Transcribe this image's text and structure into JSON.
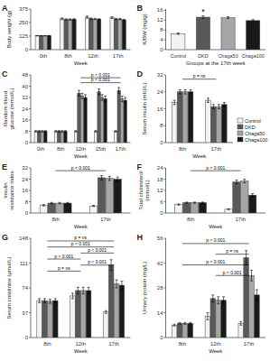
{
  "chart_data": [
    {
      "type": "bar",
      "title": "A",
      "x_label": "Week",
      "y_label": "Body weight (g)",
      "categories": [
        "0th",
        "8th",
        "12th",
        "17th"
      ],
      "series": [
        {
          "color": "#f2f2f2",
          "values": [
            128,
            285,
            300,
            295
          ],
          "errors": [
            2,
            8,
            10,
            8
          ]
        },
        {
          "color": "#595959",
          "values": [
            128,
            278,
            285,
            283
          ],
          "errors": [
            2,
            7,
            7,
            6
          ]
        },
        {
          "color": "#a6a6a6",
          "values": [
            128,
            278,
            283,
            283
          ],
          "errors": [
            2,
            6,
            6,
            6
          ]
        },
        {
          "color": "#1a1a1a",
          "values": [
            128,
            280,
            280,
            275
          ],
          "errors": [
            2,
            6,
            6,
            5
          ]
        }
      ],
      "ylim": [
        0,
        375
      ],
      "yticks": [
        0,
        125,
        250,
        375
      ]
    },
    {
      "type": "bar",
      "title": "B",
      "x_label": "Groups at the 17th week",
      "y_label": "K/BW (mg/g)",
      "categories": [
        "Control",
        "DKD",
        "Chaga50",
        "Chaga100"
      ],
      "values": [
        6.5,
        13.2,
        13.0,
        11.8
      ],
      "errors": [
        0.3,
        0.5,
        0.4,
        0.4
      ],
      "colors": [
        "#f2f2f2",
        "#595959",
        "#a6a6a6",
        "#1a1a1a"
      ],
      "ylim": [
        0,
        16.5
      ],
      "yticks": [
        0,
        4,
        8,
        12,
        16
      ],
      "annotations": [
        {
          "text": "*",
          "category": "DKD"
        }
      ]
    },
    {
      "type": "bar",
      "title": "C",
      "x_label": "Week",
      "y_label": "Random blood glucose (mmol/L)",
      "categories": [
        "0th",
        "8th",
        "12th",
        "15th",
        "17th"
      ],
      "series": [
        {
          "color": "#f2f2f2",
          "values": [
            8,
            8,
            8,
            8,
            8
          ],
          "errors": [
            0.5,
            0.5,
            0.5,
            0.5,
            0.5
          ]
        },
        {
          "color": "#595959",
          "values": [
            8,
            8,
            35,
            36,
            37
          ],
          "errors": [
            0.5,
            0.5,
            2,
            2,
            2
          ]
        },
        {
          "color": "#a6a6a6",
          "values": [
            8,
            8,
            33,
            32,
            31
          ],
          "errors": [
            0.5,
            0.5,
            2,
            2,
            2
          ]
        },
        {
          "color": "#1a1a1a",
          "values": [
            8,
            8,
            32,
            31,
            30
          ],
          "errors": [
            0.5,
            0.5,
            2,
            2,
            2
          ]
        }
      ],
      "ylim": [
        0,
        48
      ],
      "yticks": [
        0,
        8,
        16,
        24,
        32,
        40,
        48
      ],
      "annotations": [
        {
          "text": "p < 0.001",
          "from": "12th",
          "to": "17th",
          "y": 46.0
        },
        {
          "text": "p < 0.001",
          "from": "12th",
          "to": "17th",
          "y": 42.5
        }
      ]
    },
    {
      "type": "bar",
      "title": "D",
      "x_label": "Week",
      "y_label": "Serum insulin (mIU/L)",
      "categories": [
        "8th",
        "17th"
      ],
      "series": [
        {
          "name": "Control",
          "color": "#f2f2f2",
          "values": [
            19,
            20
          ],
          "errors": [
            1,
            1
          ]
        },
        {
          "name": "DKD",
          "color": "#595959",
          "values": [
            24,
            17
          ],
          "errors": [
            1,
            1
          ]
        },
        {
          "name": "Chaga50",
          "color": "#a6a6a6",
          "values": [
            24,
            17
          ],
          "errors": [
            1,
            1
          ]
        },
        {
          "name": "Chaga100",
          "color": "#1a1a1a",
          "values": [
            24,
            18
          ],
          "errors": [
            1,
            1
          ]
        }
      ],
      "ylim": [
        0,
        32
      ],
      "yticks": [
        0,
        8,
        16,
        24,
        32
      ],
      "legend": "lower right",
      "annotations": [
        {
          "text": "p = ns",
          "from": "8th",
          "to": "17th",
          "y": 30.0
        }
      ]
    },
    {
      "type": "bar",
      "title": "E",
      "x_label": "Week",
      "y_label": "Insulin resistance index",
      "categories": [
        "8th",
        "17th"
      ],
      "series": [
        {
          "color": "#f2f2f2",
          "values": [
            5.5,
            5.0
          ],
          "errors": [
            0.5,
            0.4
          ]
        },
        {
          "color": "#595959",
          "values": [
            7.0,
            25.0
          ],
          "errors": [
            0.5,
            1.5
          ]
        },
        {
          "color": "#a6a6a6",
          "values": [
            7.0,
            24.5
          ],
          "errors": [
            0.5,
            1.5
          ]
        },
        {
          "color": "#1a1a1a",
          "values": [
            7.0,
            24.0
          ],
          "errors": [
            0.5,
            1.5
          ]
        }
      ],
      "ylim": [
        0,
        32
      ],
      "yticks": [
        0,
        8,
        16,
        24,
        32
      ],
      "annotations": [
        {
          "text": "p < 0.001",
          "from": "8th",
          "to": "17th",
          "y": 30.0
        }
      ]
    },
    {
      "type": "bar",
      "title": "F",
      "x_label": "Week",
      "y_label": "Total cholesterol (mmol/L)",
      "categories": [
        "8th",
        "17th"
      ],
      "series": [
        {
          "color": "#f2f2f2",
          "values": [
            4.5,
            2.0
          ],
          "errors": [
            0.3,
            0.2
          ]
        },
        {
          "color": "#595959",
          "values": [
            5.5,
            16.5
          ],
          "errors": [
            0.3,
            1.0
          ]
        },
        {
          "color": "#a6a6a6",
          "values": [
            5.5,
            17.0
          ],
          "errors": [
            0.3,
            1.0
          ]
        },
        {
          "color": "#1a1a1a",
          "values": [
            5.5,
            9.5
          ],
          "errors": [
            0.3,
            0.8
          ]
        }
      ],
      "ylim": [
        0,
        24
      ],
      "yticks": [
        0,
        6,
        12,
        18,
        24
      ],
      "annotations": [
        {
          "text": "p < 0.001",
          "from": "8th",
          "to": "17th",
          "y": 22.5
        }
      ]
    },
    {
      "type": "bar",
      "title": "G",
      "x_label": "Week",
      "y_label": "Serum creatinine (μmol/L)",
      "categories": [
        "8th",
        "12th",
        "17th"
      ],
      "series": [
        {
          "color": "#f2f2f2",
          "values": [
            55,
            62,
            38
          ],
          "errors": [
            3,
            4,
            2
          ]
        },
        {
          "color": "#595959",
          "values": [
            55,
            70,
            108
          ],
          "errors": [
            3,
            5,
            8
          ]
        },
        {
          "color": "#a6a6a6",
          "values": [
            54,
            70,
            80
          ],
          "errors": [
            3,
            5,
            6
          ]
        },
        {
          "color": "#1a1a1a",
          "values": [
            55,
            70,
            78
          ],
          "errors": [
            3,
            5,
            6
          ]
        }
      ],
      "ylim": [
        0,
        148
      ],
      "yticks": [
        0,
        37,
        74,
        111,
        148
      ],
      "annotations": [
        {
          "text": "p = ns",
          "from": "8th",
          "to": "17th",
          "y": 144
        },
        {
          "text": "p < 0.001",
          "from": "8th",
          "to": "17th",
          "y": 135
        },
        {
          "text": "p < 0.001",
          "from": "12th",
          "to": "17th",
          "y": 126
        },
        {
          "text": "p < 0.001",
          "from": "8th",
          "to": "12th",
          "y": 117
        },
        {
          "text": "p < 0.001",
          "from": "12th",
          "to": "17th",
          "y": 108
        },
        {
          "text": "p = ns",
          "from": "8th",
          "to": "12th",
          "y": 99
        }
      ]
    },
    {
      "type": "bar",
      "title": "H",
      "x_label": "Week",
      "y_label": "Urinary protein (mg/L)",
      "categories": [
        "8th",
        "12th",
        "17th"
      ],
      "series": [
        {
          "color": "#f2f2f2",
          "values": [
            7,
            12,
            8
          ],
          "errors": [
            0.5,
            2,
            1
          ]
        },
        {
          "color": "#595959",
          "values": [
            8,
            22,
            45
          ],
          "errors": [
            0.5,
            2,
            4
          ]
        },
        {
          "color": "#a6a6a6",
          "values": [
            8,
            21,
            35
          ],
          "errors": [
            0.5,
            2,
            3
          ]
        },
        {
          "color": "#1a1a1a",
          "values": [
            8,
            21,
            24
          ],
          "errors": [
            0.5,
            2,
            3
          ]
        }
      ],
      "ylim": [
        0,
        56
      ],
      "yticks": [
        0,
        14,
        28,
        42,
        56
      ],
      "annotations": [
        {
          "text": "p < 0.001",
          "from": "8th",
          "to": "17th",
          "y": 53
        },
        {
          "text": "p = ns",
          "from": "12th",
          "to": "17th",
          "y": 47
        },
        {
          "text": "p < 0.001",
          "from": "8th",
          "to": "17th",
          "y": 41
        },
        {
          "text": "p < 0.001",
          "from": "12th",
          "to": "17th",
          "y": 35
        }
      ]
    }
  ]
}
